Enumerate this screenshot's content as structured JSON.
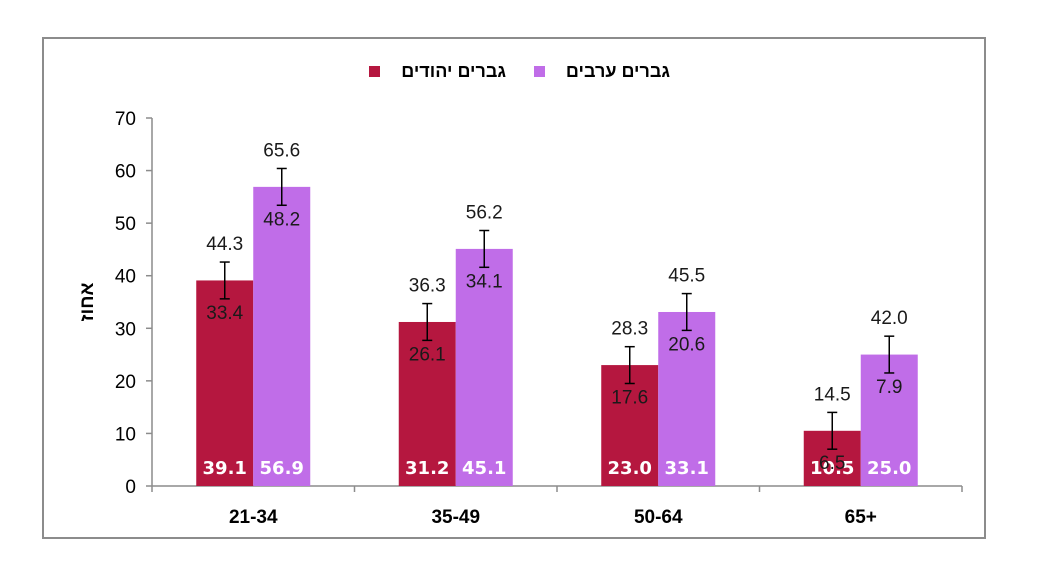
{
  "chart_data": {
    "type": "bar",
    "categories": [
      "21-34",
      "35-49",
      "50-64",
      "65+"
    ],
    "series": [
      {
        "name": "גברים יהודים",
        "color": "#b5173f",
        "values": [
          39.1,
          31.2,
          23.0,
          10.5
        ],
        "value_labels": [
          "39.1",
          "31.2",
          "23.0",
          "10.5"
        ],
        "ci_upper": [
          44.3,
          36.3,
          28.3,
          14.5
        ],
        "ci_lower": [
          33.4,
          26.1,
          17.6,
          6.5
        ],
        "ci_upper_labels": [
          "44.3",
          "36.3",
          "28.3",
          "14.5"
        ],
        "ci_lower_labels": [
          "33.4",
          "26.1",
          "17.6",
          "6.5"
        ]
      },
      {
        "name": "גברים ערבים",
        "color": "#c06de8",
        "values": [
          56.9,
          45.1,
          33.1,
          25.0
        ],
        "value_labels": [
          "56.9",
          "45.1",
          "33.1",
          "25.0"
        ],
        "ci_upper": [
          65.6,
          56.2,
          45.5,
          42.0
        ],
        "ci_lower": [
          48.2,
          34.1,
          20.6,
          7.9
        ],
        "ci_upper_labels": [
          "65.6",
          "56.2",
          "45.5",
          "42.0"
        ],
        "ci_lower_labels": [
          "48.2",
          "34.1",
          "20.6",
          "7.9"
        ]
      }
    ],
    "ylabel": "אחוז",
    "xlabel": "",
    "title": "",
    "ylim": [
      0,
      70
    ],
    "yticks": [
      "0",
      "10",
      "20",
      "30",
      "40",
      "50",
      "60",
      "70"
    ],
    "grid": false,
    "legend_position": "top-center"
  }
}
